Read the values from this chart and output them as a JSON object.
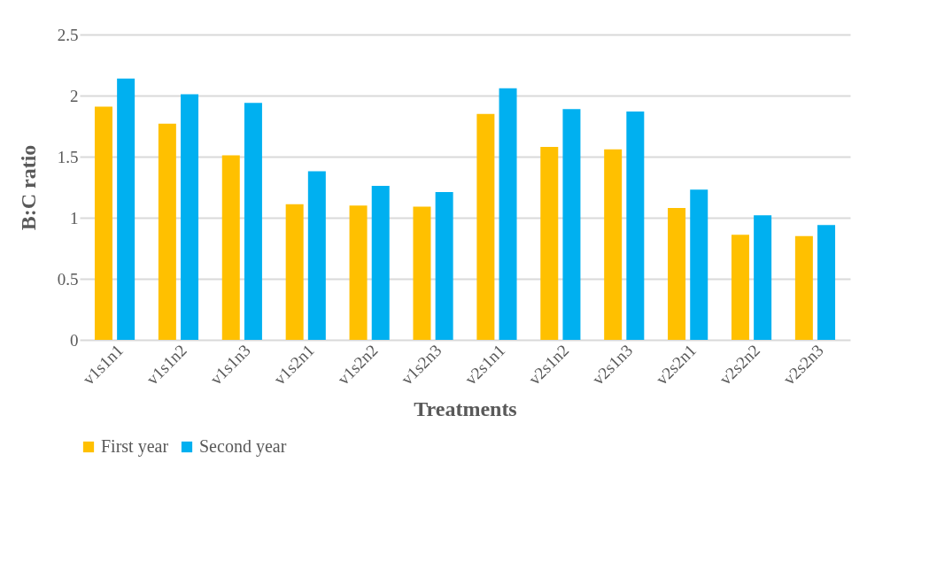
{
  "chart_data": {
    "type": "bar",
    "xlabel": "Treatments",
    "ylabel": "B:C ratio",
    "categories": [
      "v1s1n1",
      "v1s1n2",
      "v1s1n3",
      "v1s2n1",
      "v1s2n2",
      "v1s2n3",
      "v2s1n1",
      "v2s1n2",
      "v2s1n3",
      "v2s2n1",
      "v2s2n2",
      "v2s2n3"
    ],
    "series": [
      {
        "name": "First year",
        "color": "#ffc000",
        "values": [
          1.91,
          1.77,
          1.51,
          1.11,
          1.1,
          1.09,
          1.85,
          1.58,
          1.56,
          1.08,
          0.86,
          0.85
        ]
      },
      {
        "name": "Second year",
        "color": "#00b0f0",
        "values": [
          2.14,
          2.01,
          1.94,
          1.38,
          1.26,
          1.21,
          2.06,
          1.89,
          1.87,
          1.23,
          1.02,
          0.94
        ]
      }
    ],
    "ylim": [
      0,
      2.5
    ],
    "yticks": [
      0,
      0.5,
      1,
      1.5,
      2,
      2.5
    ],
    "grid": "y",
    "legend": "bottom"
  }
}
